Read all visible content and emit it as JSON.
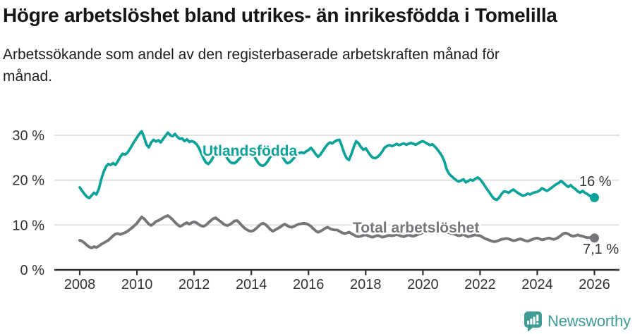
{
  "footer": {
    "brand": "Newsworthy",
    "logo_color": "#3f9c95"
  },
  "colors": {
    "accent_teal": "#0ba29a",
    "series_gray": "#76767a",
    "grid": "#d8d8d8",
    "axis": "#2f2f2f",
    "text_dark": "#333333"
  },
  "chart_data": {
    "type": "line",
    "title": "Högre arbetslöshet bland utrikes- än inrikesfödda i Tomelilla",
    "subtitle_lines": [
      "Arbetssökande som andel av den registerbaserade arbetskraften månad för",
      "månad."
    ],
    "x_unit": "month",
    "x_start": "2008-01",
    "x_end": "2026-01",
    "xticks": [
      "2008",
      "2010",
      "2012",
      "2014",
      "2016",
      "2018",
      "2020",
      "2022",
      "2024",
      "2026"
    ],
    "ytick_labels": [
      "0 %",
      "10 %",
      "20 %",
      "30 %"
    ],
    "ytick_values": [
      0,
      10,
      20,
      30
    ],
    "ylim": [
      0,
      32
    ],
    "grid": "horizontal",
    "legend_position": "inline-labels",
    "series": [
      {
        "name": "Utlandsfödda",
        "color": "#0ba29a",
        "end_label": "16 %",
        "values": [
          18.4,
          17.6,
          16.9,
          16.3,
          16.0,
          16.6,
          17.2,
          16.8,
          18.0,
          20.1,
          21.8,
          23.0,
          23.6,
          23.4,
          23.8,
          23.4,
          24.2,
          25.2,
          25.9,
          25.7,
          26.1,
          26.9,
          27.8,
          28.7,
          29.5,
          30.3,
          30.9,
          29.6,
          27.9,
          27.3,
          28.4,
          29.0,
          28.6,
          28.9,
          28.4,
          29.2,
          29.9,
          30.6,
          30.0,
          29.8,
          30.3,
          29.6,
          29.2,
          29.3,
          28.7,
          29.1,
          28.5,
          28.7,
          28.5,
          28.0,
          27.2,
          26.0,
          24.8,
          23.9,
          23.6,
          24.2,
          25.1,
          25.9,
          26.4,
          26.6,
          26.3,
          25.6,
          24.8,
          24.1,
          23.8,
          23.8,
          24.2,
          24.8,
          25.5,
          26.1,
          26.5,
          26.7,
          26.3,
          25.5,
          24.6,
          23.8,
          23.3,
          23.2,
          23.6,
          24.3,
          25.2,
          26.0,
          26.4,
          26.6,
          26.1,
          25.3,
          24.4,
          23.8,
          23.9,
          24.4,
          25.0,
          25.6,
          26.0,
          26.2,
          26.0,
          26.4,
          26.7,
          27.2,
          26.6,
          25.8,
          25.2,
          25.7,
          26.5,
          27.3,
          28.0,
          28.4,
          28.2,
          28.6,
          28.9,
          29.0,
          27.6,
          26.0,
          24.9,
          24.5,
          25.8,
          27.4,
          28.7,
          28.2,
          27.4,
          26.8,
          27.1,
          26.3,
          25.5,
          25.0,
          24.9,
          25.2,
          25.7,
          26.4,
          27.3,
          27.6,
          27.8,
          27.6,
          27.8,
          28.1,
          27.8,
          28.0,
          28.2,
          27.9,
          28.1,
          28.3,
          28.1,
          27.9,
          28.2,
          28.5,
          28.7,
          28.4,
          28.1,
          27.8,
          28.0,
          27.5,
          26.9,
          26.2,
          25.4,
          24.2,
          22.4,
          21.4,
          20.9,
          20.4,
          20.0,
          19.7,
          19.9,
          20.2,
          19.5,
          19.8,
          20.1,
          19.9,
          20.3,
          20.6,
          20.2,
          19.5,
          18.7,
          17.9,
          17.2,
          16.4,
          15.8,
          15.6,
          16.1,
          16.9,
          17.5,
          17.4,
          17.2,
          17.6,
          17.9,
          17.5,
          17.1,
          16.8,
          16.5,
          16.7,
          17.0,
          16.8,
          17.1,
          17.3,
          17.4,
          17.7,
          18.2,
          17.9,
          17.6,
          17.9,
          18.3,
          18.7,
          19.1,
          19.4,
          19.8,
          19.4,
          18.9,
          18.5,
          18.9,
          18.4,
          18.0,
          17.5,
          17.2,
          17.6,
          17.2,
          16.9,
          16.5,
          16.2,
          16.1
        ]
      },
      {
        "name": "Total arbetslöshet",
        "color": "#76767a",
        "end_label": "7,1 %",
        "values": [
          6.6,
          6.4,
          6.0,
          5.5,
          5.1,
          4.9,
          5.2,
          5.0,
          5.3,
          5.7,
          6.0,
          6.3,
          6.6,
          7.1,
          7.6,
          8.0,
          8.1,
          7.9,
          8.1,
          8.3,
          8.6,
          9.0,
          9.4,
          9.9,
          10.4,
          11.1,
          11.8,
          11.4,
          10.8,
          10.2,
          9.9,
          10.3,
          10.8,
          11.0,
          11.3,
          11.6,
          11.9,
          12.1,
          11.7,
          11.2,
          10.6,
          10.1,
          9.7,
          9.9,
          10.3,
          10.5,
          10.2,
          10.5,
          10.7,
          10.5,
          10.1,
          9.8,
          9.7,
          10.0,
          10.5,
          11.0,
          11.4,
          11.6,
          11.2,
          10.8,
          10.4,
          10.0,
          9.9,
          10.1,
          10.5,
          10.9,
          11.0,
          10.5,
          9.9,
          9.4,
          9.0,
          8.7,
          8.6,
          8.8,
          9.2,
          9.7,
          10.2,
          10.4,
          10.1,
          9.6,
          9.0,
          8.6,
          8.9,
          9.2,
          9.5,
          9.9,
          10.2,
          9.9,
          9.6,
          9.5,
          9.7,
          10.0,
          10.2,
          10.3,
          10.4,
          10.3,
          10.1,
          9.7,
          9.2,
          8.7,
          8.4,
          8.6,
          8.9,
          9.3,
          9.5,
          9.2,
          9.0,
          8.9,
          8.9,
          8.6,
          8.3,
          8.1,
          8.2,
          8.4,
          8.1,
          7.8,
          7.5,
          7.4,
          7.5,
          7.7,
          7.8,
          7.6,
          7.4,
          7.3,
          7.5,
          7.7,
          7.5,
          7.3,
          7.4,
          7.6,
          7.7,
          7.6,
          7.7,
          7.9,
          7.7,
          7.5,
          7.4,
          7.6,
          7.8,
          7.6,
          7.5,
          7.7,
          7.9,
          8.1,
          8.3,
          8.5,
          8.9,
          9.3,
          9.5,
          9.4,
          9.2,
          9.0,
          8.8,
          8.6,
          8.4,
          8.3,
          8.1,
          8.0,
          7.8,
          7.6,
          7.7,
          7.9,
          7.6,
          7.4,
          7.5,
          7.7,
          7.8,
          7.7,
          7.6,
          7.3,
          7.0,
          6.8,
          6.6,
          6.4,
          6.3,
          6.4,
          6.6,
          6.8,
          6.9,
          7.0,
          6.9,
          6.7,
          6.5,
          6.6,
          6.8,
          6.9,
          6.7,
          6.5,
          6.4,
          6.6,
          6.8,
          7.0,
          7.1,
          6.9,
          6.7,
          6.8,
          7.0,
          7.1,
          6.9,
          6.8,
          7.0,
          7.3,
          7.7,
          8.1,
          8.2,
          8.0,
          7.7,
          7.5,
          7.6,
          7.8,
          7.6,
          7.5,
          7.3,
          7.2,
          7.2,
          7.1,
          7.1
        ]
      }
    ]
  }
}
